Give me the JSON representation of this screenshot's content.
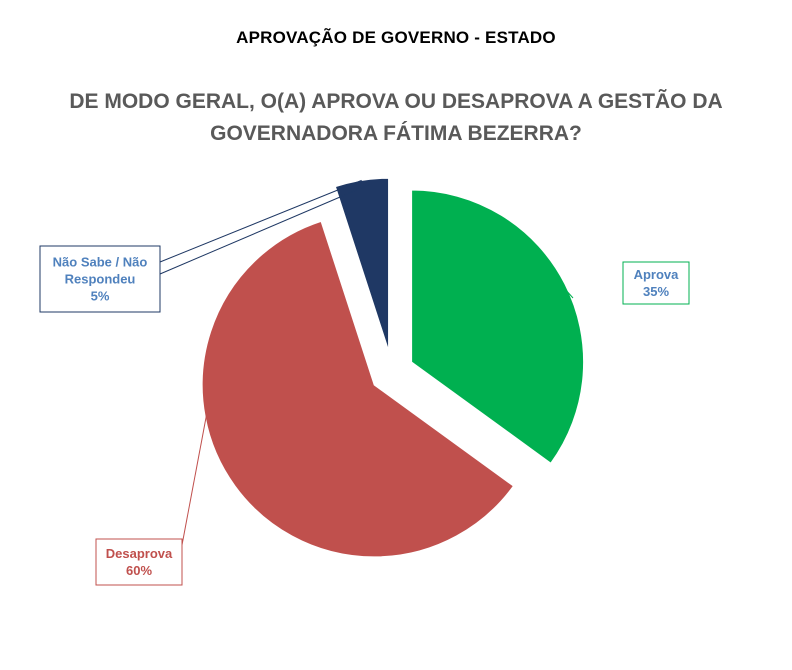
{
  "header": {
    "title": "APROVAÇÃO DE GOVERNO - ESTADO"
  },
  "question": {
    "line1": "DE MODO GERAL, O(A) APROVA OU DESAPROVA A GESTÃO DA",
    "line2": "GOVERNADORA FÁTIMA BEZERRA?"
  },
  "chart_data": {
    "type": "pie",
    "title": "",
    "legend": "none",
    "slices": [
      {
        "label": "Aprova",
        "value": 35,
        "value_label": "35%",
        "color": "#00B050"
      },
      {
        "label": "Desaprova",
        "value": 60,
        "value_label": "60%",
        "color": "#C0504D"
      },
      {
        "label": "Não Sabe / Não Respondeu",
        "value": 5,
        "value_label": "5%",
        "color": "#1F3864"
      }
    ]
  }
}
